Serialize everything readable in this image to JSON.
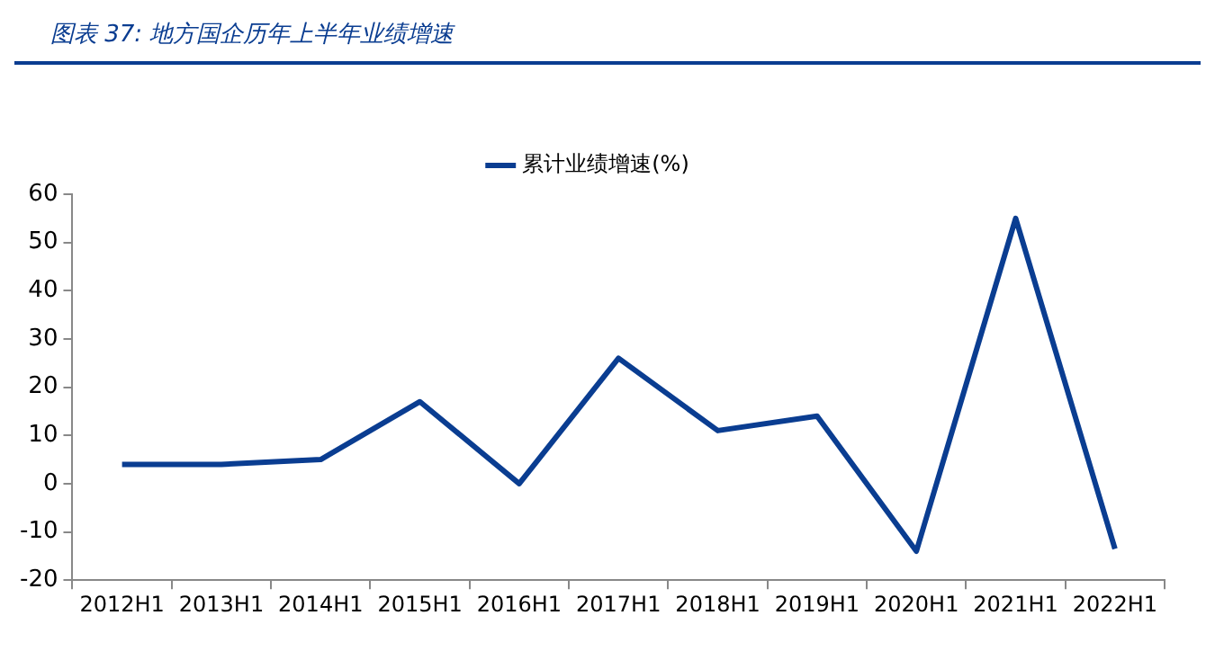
{
  "chart_data": {
    "type": "line",
    "title": "图表 37: 地方国企历年上半年业绩增速",
    "categories": [
      "2012H1",
      "2013H1",
      "2014H1",
      "2015H1",
      "2016H1",
      "2017H1",
      "2018H1",
      "2019H1",
      "2020H1",
      "2021H1",
      "2022H1"
    ],
    "series": [
      {
        "name": "累计业绩增速(%)",
        "color": "#0a3d91",
        "values": [
          4,
          4,
          5,
          17,
          0,
          26,
          11,
          14,
          -14,
          55,
          -13.5
        ]
      }
    ],
    "ylim": [
      -20,
      60
    ],
    "yticks": [
      -20,
      -10,
      0,
      10,
      20,
      30,
      40,
      50,
      60
    ],
    "grid": false,
    "legend": "top",
    "marker": "none",
    "line_style": "solid"
  }
}
